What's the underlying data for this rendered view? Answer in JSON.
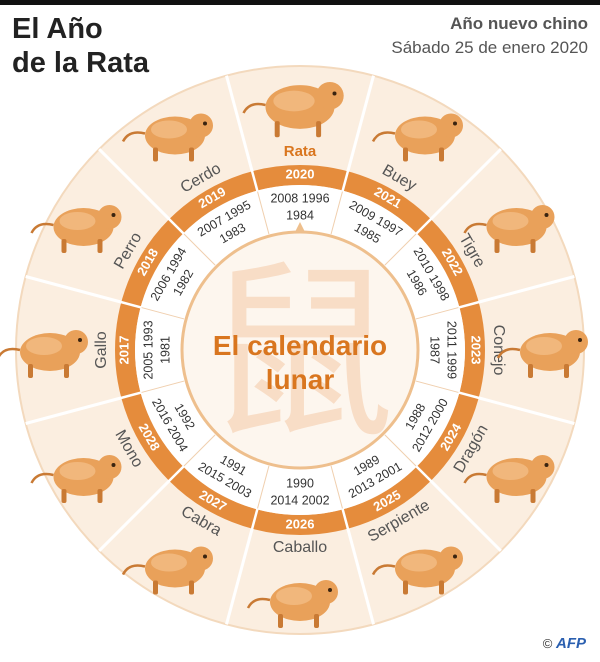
{
  "header": {
    "title_line1": "El Año",
    "title_line2": "de la Rata",
    "subtitle_line1": "Año nuevo chino",
    "subtitle_line2": "Sábado 25 de enero 2020"
  },
  "center": {
    "line1": "El calendario",
    "line2": "lunar",
    "watermark_char": "鼠"
  },
  "signs": [
    {
      "name": "Rata",
      "year": "2020",
      "years": [
        "2008 1996",
        "1984"
      ],
      "icon": "rat-icon"
    },
    {
      "name": "Buey",
      "year": "2021",
      "years": [
        "2009 1997",
        "1985"
      ],
      "icon": "ox-icon"
    },
    {
      "name": "Tigre",
      "year": "2022",
      "years": [
        "2010 1998",
        "1986"
      ],
      "icon": "tiger-icon"
    },
    {
      "name": "Conejo",
      "year": "2023",
      "years": [
        "2011 1999",
        "1987"
      ],
      "icon": "rabbit-icon"
    },
    {
      "name": "Dragón",
      "year": "2024",
      "years": [
        "2012 2000",
        "1988"
      ],
      "icon": "dragon-icon"
    },
    {
      "name": "Serpiente",
      "year": "2025",
      "years": [
        "2013 2001",
        "1989"
      ],
      "icon": "snake-icon"
    },
    {
      "name": "Caballo",
      "year": "2026",
      "years": [
        "2014 2002",
        "1990"
      ],
      "icon": "horse-icon"
    },
    {
      "name": "Cabra",
      "year": "2027",
      "years": [
        "2015 2003",
        "1991"
      ],
      "icon": "goat-icon"
    },
    {
      "name": "Mono",
      "year": "2028",
      "years": [
        "2016 2004",
        "1992"
      ],
      "icon": "monkey-icon"
    },
    {
      "name": "Gallo",
      "year": "2017",
      "years": [
        "2005 1993",
        "1981"
      ],
      "icon": "rooster-icon"
    },
    {
      "name": "Perro",
      "year": "2018",
      "years": [
        "2006 1994",
        "1982"
      ],
      "icon": "dog-icon"
    },
    {
      "name": "Cerdo",
      "year": "2019",
      "years": [
        "2007 1995",
        "1983"
      ],
      "icon": "pig-icon"
    }
  ],
  "colors": {
    "band": "#e58c3c",
    "band_dark": "#c96a1e",
    "outer_disc": "#fbeee0",
    "inner_disc": "#fdf6ee",
    "animal": "#e9a15a",
    "label": "#555555"
  },
  "credit": {
    "copyright": "©",
    "agency": "AFP"
  }
}
